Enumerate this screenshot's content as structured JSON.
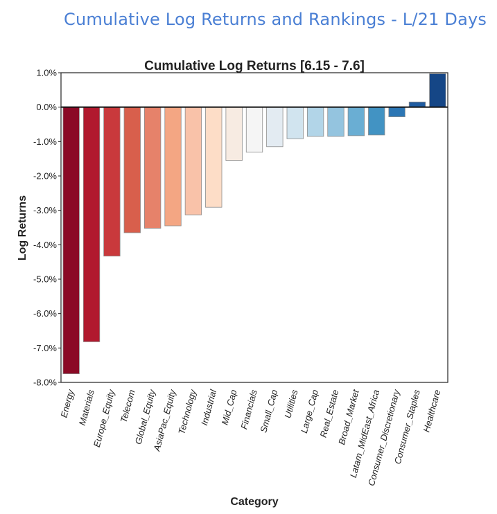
{
  "page": {
    "suptitle": "Cumulative Log Returns and Rankings - L/21 Days"
  },
  "chart_data": {
    "type": "bar",
    "title": "Cumulative Log Returns [6.15 - 7.6]",
    "xlabel": "Category",
    "ylabel": "Log Returns",
    "ylim": [
      -8.0,
      1.0
    ],
    "yticks": [
      1.0,
      0.0,
      -1.0,
      -2.0,
      -3.0,
      -4.0,
      -5.0,
      -6.0,
      -7.0,
      -8.0
    ],
    "ytick_labels": [
      "1.0%",
      "0.0%",
      "-1.0%",
      "-2.0%",
      "-3.0%",
      "-4.0%",
      "-5.0%",
      "-6.0%",
      "-7.0%",
      "-8.0%"
    ],
    "categories": [
      "Energy",
      "Materials",
      "Europe_Equity",
      "Telecom",
      "Global_Equity",
      "AsiaPac_Equity",
      "Technology",
      "Industrial",
      "Mid_Cap",
      "Financials",
      "Small_Cap",
      "Utilities",
      "Large_Cap",
      "Real_Estate",
      "Broad_Market",
      "Latam_MidEast_Africa",
      "Consumer_Discretionary",
      "Consumer_Staples",
      "Healthcare"
    ],
    "values": [
      -7.75,
      -6.82,
      -4.33,
      -3.65,
      -3.52,
      -3.45,
      -3.13,
      -2.91,
      -1.55,
      -1.31,
      -1.15,
      -0.92,
      -0.85,
      -0.85,
      -0.83,
      -0.81,
      -0.28,
      0.15,
      0.97
    ],
    "colors": [
      "#8b0a26",
      "#b1192e",
      "#c9393c",
      "#d85f4c",
      "#e6826a",
      "#f4a683",
      "#f9c2a9",
      "#fdddc7",
      "#f7ebe2",
      "#f5f5f5",
      "#e3ebf2",
      "#d1e4ef",
      "#b2d5e8",
      "#94c4df",
      "#6aaed3",
      "#4293c3",
      "#2c76b4",
      "#205ca1",
      "#154686"
    ],
    "zero_line": true,
    "grid": false
  }
}
